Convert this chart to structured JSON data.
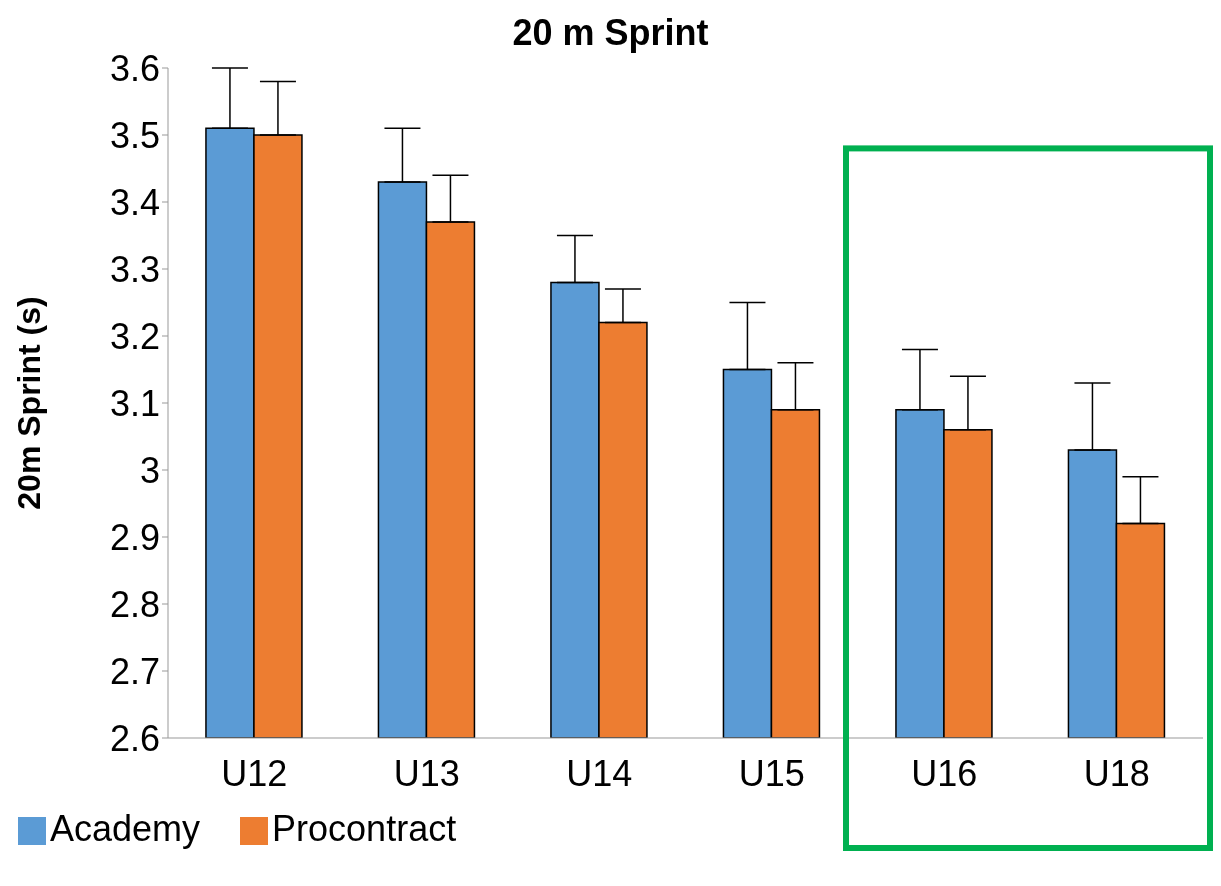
{
  "chart_data": {
    "type": "bar",
    "title": "20 m Sprint",
    "ylabel": "20m Sprint (s)",
    "categories": [
      "U12",
      "U13",
      "U14",
      "U15",
      "U16",
      "U18"
    ],
    "series": [
      {
        "name": "Academy",
        "color": "#5b9bd5",
        "values": [
          3.51,
          3.43,
          3.28,
          3.15,
          3.09,
          3.03
        ],
        "errors": [
          [
            3.51,
            3.6
          ],
          [
            3.43,
            3.51
          ],
          [
            3.28,
            3.35
          ],
          [
            3.15,
            3.25
          ],
          [
            3.09,
            3.18
          ],
          [
            3.03,
            3.13
          ]
        ]
      },
      {
        "name": "Procontract",
        "color": "#ed7d31",
        "values": [
          3.5,
          3.37,
          3.22,
          3.09,
          3.06,
          2.92
        ],
        "errors": [
          [
            3.5,
            3.58
          ],
          [
            3.37,
            3.44
          ],
          [
            3.22,
            3.27
          ],
          [
            3.09,
            3.16
          ],
          [
            3.06,
            3.14
          ],
          [
            2.92,
            2.99
          ]
        ]
      }
    ],
    "ylim": [
      2.6,
      3.6
    ],
    "yticks": [
      2.6,
      2.7,
      2.8,
      2.9,
      3,
      3.1,
      3.2,
      3.3,
      3.4,
      3.5,
      3.6
    ],
    "grid": false,
    "legend": "bottom left"
  }
}
